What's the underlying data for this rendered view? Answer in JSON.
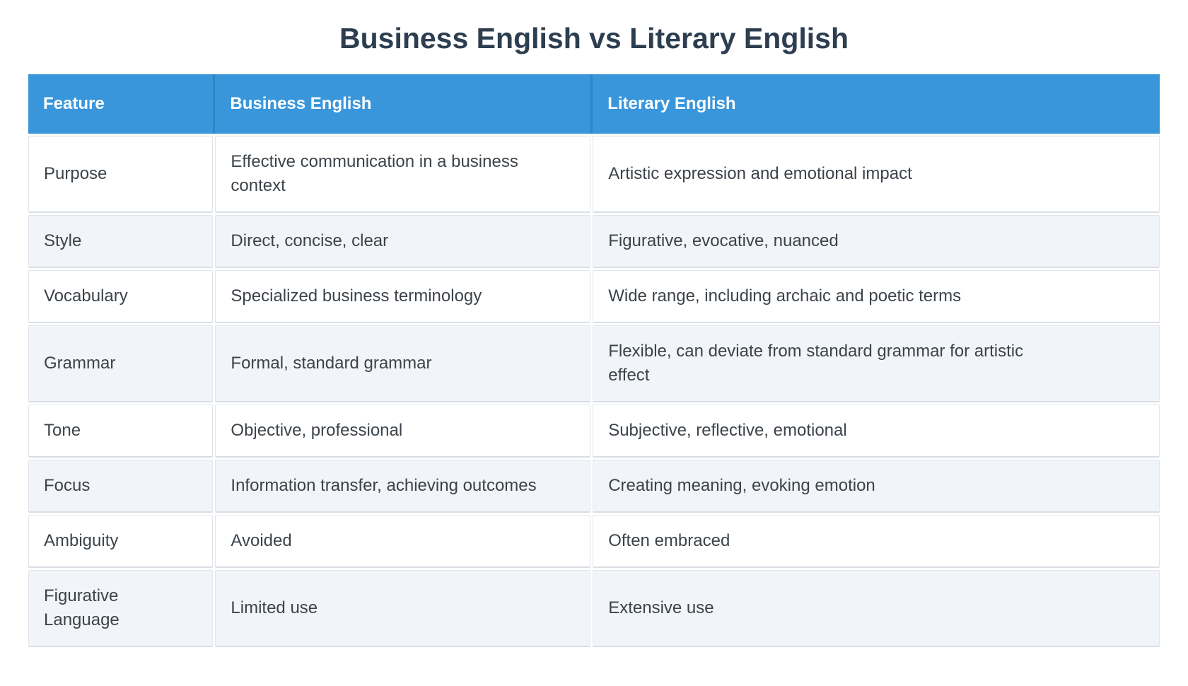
{
  "title": "Business English vs Literary English",
  "table": {
    "columns": [
      "Feature",
      "Business English",
      "Literary English"
    ],
    "rows": [
      {
        "feature": "Purpose",
        "business": "Effective communication in a business\ncontext",
        "literary": "Artistic expression and emotional impact"
      },
      {
        "feature": "Style",
        "business": "Direct, concise, clear",
        "literary": "Figurative, evocative, nuanced"
      },
      {
        "feature": "Vocabulary",
        "business": "Specialized business terminology",
        "literary": "Wide range, including archaic and poetic terms"
      },
      {
        "feature": "Grammar",
        "business": "Formal, standard grammar",
        "literary": "Flexible, can deviate from standard grammar for artistic\neffect"
      },
      {
        "feature": "Tone",
        "business": "Objective, professional",
        "literary": "Subjective, reflective, emotional"
      },
      {
        "feature": "Focus",
        "business": "Information transfer, achieving outcomes",
        "literary": "Creating meaning, evoking emotion"
      },
      {
        "feature": "Ambiguity",
        "business": "Avoided",
        "literary": "Often embraced"
      },
      {
        "feature": "Figurative\nLanguage",
        "business": "Limited use",
        "literary": "Extensive use"
      }
    ]
  },
  "colors": {
    "header_bg": "#3a96db",
    "header_seam": "#2e86c4",
    "header_text": "#ffffff",
    "row_bg": "#ffffff",
    "row_alt_bg": "#f1f4f9",
    "cell_border": "#e2e6ec",
    "cell_text": "#3c434a",
    "title_color": "#2d3e50"
  }
}
